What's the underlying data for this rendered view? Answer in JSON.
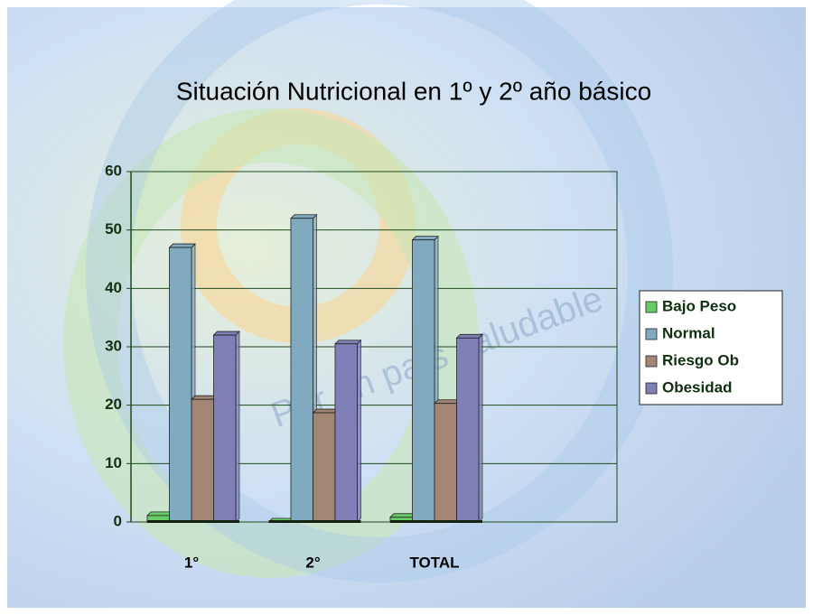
{
  "chart_data": {
    "type": "bar",
    "title": "Situación Nutricional en 1º y 2º año básico",
    "watermark": "Por un país saludable",
    "categories": [
      "1°",
      "2°",
      "TOTAL"
    ],
    "series": [
      {
        "name": "Bajo Peso",
        "color": "#66cc66",
        "values": [
          1.1,
          0,
          0.8
        ]
      },
      {
        "name": "Normal",
        "color": "#80aac0",
        "values": [
          47,
          52,
          48.3
        ]
      },
      {
        "name": "Riesgo Ob",
        "color": "#a38574",
        "values": [
          21,
          18.7,
          20.3
        ]
      },
      {
        "name": "Obesidad",
        "color": "#8080b8",
        "values": [
          32,
          30.5,
          31.5
        ]
      }
    ],
    "ylim": [
      0,
      60
    ],
    "yticks": [
      0,
      10,
      20,
      30,
      40,
      50,
      60
    ],
    "grid": true,
    "legend": "right"
  }
}
